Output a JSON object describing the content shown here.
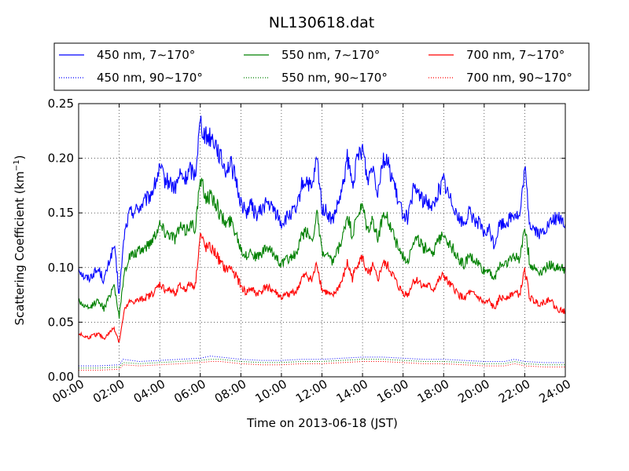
{
  "chart_data": {
    "type": "line",
    "title": "NL130618.dat",
    "xlabel": "Time on 2013-06-18 (JST)",
    "ylabel_main": "Scattering Coefficient (km",
    "ylabel_sup": "−1",
    "ylabel_tail": ")",
    "xlim": [
      0,
      24
    ],
    "ylim": [
      0,
      0.25
    ],
    "x_ticks": [
      0,
      2,
      4,
      6,
      8,
      10,
      12,
      14,
      16,
      18,
      20,
      22,
      24
    ],
    "x_tick_labels": [
      "00:00",
      "02:00",
      "04:00",
      "06:00",
      "08:00",
      "10:00",
      "12:00",
      "14:00",
      "16:00",
      "18:00",
      "20:00",
      "22:00",
      "24:00"
    ],
    "y_ticks": [
      0,
      0.05,
      0.1,
      0.15,
      0.2,
      0.25
    ],
    "y_tick_labels": [
      "0.00",
      "0.05",
      "0.10",
      "0.15",
      "0.20",
      "0.25"
    ],
    "grid": true,
    "legend_position": "top, outside plot, 3 columns",
    "x_unit": "hours since 00:00",
    "series": [
      {
        "name": "450 nm, 7∼170°",
        "color": "#0000ff",
        "style": "solid",
        "x": [
          0,
          0.25,
          0.5,
          0.75,
          1,
          1.25,
          1.5,
          1.75,
          2,
          2.25,
          2.5,
          2.75,
          3,
          3.25,
          3.5,
          3.75,
          4,
          4.25,
          4.5,
          4.75,
          5,
          5.25,
          5.5,
          5.75,
          6,
          6.25,
          6.5,
          6.75,
          7,
          7.25,
          7.5,
          7.75,
          8,
          8.25,
          8.5,
          8.75,
          9,
          9.25,
          9.5,
          9.75,
          10,
          10.25,
          10.5,
          10.75,
          11,
          11.25,
          11.5,
          11.75,
          12,
          12.25,
          12.5,
          12.75,
          13,
          13.25,
          13.5,
          13.75,
          14,
          14.25,
          14.5,
          14.75,
          15,
          15.25,
          15.5,
          15.75,
          16,
          16.25,
          16.5,
          16.75,
          17,
          17.25,
          17.5,
          17.75,
          18,
          18.25,
          18.5,
          18.75,
          19,
          19.25,
          19.5,
          19.75,
          20,
          20.25,
          20.5,
          20.75,
          21,
          21.25,
          21.5,
          21.75,
          22,
          22.25,
          22.5,
          22.75,
          23,
          23.25,
          23.5,
          23.75,
          24
        ],
        "y": [
          0.1,
          0.092,
          0.09,
          0.095,
          0.098,
          0.088,
          0.105,
          0.12,
          0.075,
          0.13,
          0.15,
          0.152,
          0.155,
          0.16,
          0.165,
          0.175,
          0.19,
          0.18,
          0.178,
          0.172,
          0.185,
          0.18,
          0.19,
          0.185,
          0.235,
          0.22,
          0.22,
          0.215,
          0.2,
          0.19,
          0.195,
          0.18,
          0.16,
          0.15,
          0.158,
          0.148,
          0.152,
          0.16,
          0.155,
          0.15,
          0.14,
          0.145,
          0.15,
          0.152,
          0.175,
          0.18,
          0.17,
          0.2,
          0.155,
          0.15,
          0.142,
          0.155,
          0.17,
          0.2,
          0.175,
          0.2,
          0.21,
          0.18,
          0.195,
          0.17,
          0.2,
          0.195,
          0.18,
          0.16,
          0.15,
          0.145,
          0.17,
          0.17,
          0.16,
          0.16,
          0.155,
          0.17,
          0.18,
          0.165,
          0.158,
          0.145,
          0.14,
          0.15,
          0.145,
          0.14,
          0.13,
          0.135,
          0.12,
          0.14,
          0.14,
          0.145,
          0.15,
          0.145,
          0.19,
          0.14,
          0.135,
          0.13,
          0.135,
          0.14,
          0.145,
          0.145,
          0.14
        ]
      },
      {
        "name": "550 nm, 7∼170°",
        "color": "#008000",
        "style": "solid",
        "x": [
          0,
          0.25,
          0.5,
          0.75,
          1,
          1.25,
          1.5,
          1.75,
          2,
          2.25,
          2.5,
          2.75,
          3,
          3.25,
          3.5,
          3.75,
          4,
          4.25,
          4.5,
          4.75,
          5,
          5.25,
          5.5,
          5.75,
          6,
          6.25,
          6.5,
          6.75,
          7,
          7.25,
          7.5,
          7.75,
          8,
          8.25,
          8.5,
          8.75,
          9,
          9.25,
          9.5,
          9.75,
          10,
          10.25,
          10.5,
          10.75,
          11,
          11.25,
          11.5,
          11.75,
          12,
          12.25,
          12.5,
          12.75,
          13,
          13.25,
          13.5,
          13.75,
          14,
          14.25,
          14.5,
          14.75,
          15,
          15.25,
          15.5,
          15.75,
          16,
          16.25,
          16.5,
          16.75,
          17,
          17.25,
          17.5,
          17.75,
          18,
          18.25,
          18.5,
          18.75,
          19,
          19.25,
          19.5,
          19.75,
          20,
          20.25,
          20.5,
          20.75,
          21,
          21.25,
          21.5,
          21.75,
          22,
          22.25,
          22.5,
          22.75,
          23,
          23.25,
          23.5,
          23.75,
          24
        ],
        "y": [
          0.07,
          0.065,
          0.062,
          0.067,
          0.07,
          0.062,
          0.073,
          0.085,
          0.055,
          0.095,
          0.11,
          0.112,
          0.115,
          0.118,
          0.122,
          0.13,
          0.14,
          0.133,
          0.131,
          0.127,
          0.137,
          0.133,
          0.14,
          0.137,
          0.18,
          0.165,
          0.165,
          0.16,
          0.148,
          0.14,
          0.143,
          0.133,
          0.118,
          0.11,
          0.116,
          0.109,
          0.112,
          0.118,
          0.114,
          0.11,
          0.103,
          0.107,
          0.11,
          0.112,
          0.129,
          0.133,
          0.125,
          0.148,
          0.114,
          0.11,
          0.104,
          0.114,
          0.125,
          0.148,
          0.129,
          0.148,
          0.155,
          0.133,
          0.144,
          0.125,
          0.148,
          0.144,
          0.133,
          0.118,
          0.11,
          0.107,
          0.125,
          0.125,
          0.118,
          0.118,
          0.114,
          0.125,
          0.133,
          0.122,
          0.116,
          0.107,
          0.103,
          0.11,
          0.107,
          0.103,
          0.096,
          0.099,
          0.088,
          0.103,
          0.103,
          0.107,
          0.11,
          0.107,
          0.14,
          0.103,
          0.099,
          0.096,
          0.099,
          0.103,
          0.1,
          0.1,
          0.098
        ]
      },
      {
        "name": "700 nm, 7∼170°",
        "color": "#ff0000",
        "style": "solid",
        "x": [
          0,
          0.25,
          0.5,
          0.75,
          1,
          1.25,
          1.5,
          1.75,
          2,
          2.25,
          2.5,
          2.75,
          3,
          3.25,
          3.5,
          3.75,
          4,
          4.25,
          4.5,
          4.75,
          5,
          5.25,
          5.5,
          5.75,
          6,
          6.25,
          6.5,
          6.75,
          7,
          7.25,
          7.5,
          7.75,
          8,
          8.25,
          8.5,
          8.75,
          9,
          9.25,
          9.5,
          9.75,
          10,
          10.25,
          10.5,
          10.75,
          11,
          11.25,
          11.5,
          11.75,
          12,
          12.25,
          12.5,
          12.75,
          13,
          13.25,
          13.5,
          13.75,
          14,
          14.25,
          14.5,
          14.75,
          15,
          15.25,
          15.5,
          15.75,
          16,
          16.25,
          16.5,
          16.75,
          17,
          17.25,
          17.5,
          17.75,
          18,
          18.25,
          18.5,
          18.75,
          19,
          19.25,
          19.5,
          19.75,
          20,
          20.25,
          20.5,
          20.75,
          21,
          21.25,
          21.5,
          21.75,
          22,
          22.25,
          22.5,
          22.75,
          23,
          23.25,
          23.5,
          23.75,
          24
        ],
        "y": [
          0.04,
          0.037,
          0.036,
          0.038,
          0.039,
          0.035,
          0.04,
          0.045,
          0.032,
          0.06,
          0.068,
          0.069,
          0.07,
          0.072,
          0.074,
          0.078,
          0.085,
          0.08,
          0.079,
          0.077,
          0.083,
          0.08,
          0.085,
          0.083,
          0.13,
          0.118,
          0.118,
          0.113,
          0.104,
          0.098,
          0.1,
          0.093,
          0.083,
          0.077,
          0.081,
          0.076,
          0.078,
          0.083,
          0.08,
          0.077,
          0.072,
          0.075,
          0.077,
          0.078,
          0.09,
          0.093,
          0.088,
          0.104,
          0.08,
          0.077,
          0.073,
          0.08,
          0.088,
          0.104,
          0.09,
          0.104,
          0.109,
          0.093,
          0.101,
          0.088,
          0.104,
          0.101,
          0.093,
          0.083,
          0.077,
          0.075,
          0.088,
          0.088,
          0.083,
          0.083,
          0.08,
          0.088,
          0.093,
          0.085,
          0.081,
          0.075,
          0.072,
          0.077,
          0.075,
          0.072,
          0.067,
          0.069,
          0.062,
          0.072,
          0.072,
          0.075,
          0.077,
          0.075,
          0.098,
          0.072,
          0.069,
          0.067,
          0.069,
          0.072,
          0.063,
          0.061,
          0.06
        ]
      },
      {
        "name": "450 nm, 90∼170°",
        "color": "#0000ff",
        "style": "dotted",
        "x": [
          0,
          1,
          2,
          2.2,
          3,
          4,
          5,
          6,
          6.5,
          7,
          8,
          9,
          10,
          11,
          12,
          13,
          14,
          15,
          16,
          17,
          18,
          19,
          20,
          21,
          21.5,
          22,
          23,
          24
        ],
        "y": [
          0.01,
          0.01,
          0.011,
          0.016,
          0.014,
          0.015,
          0.016,
          0.017,
          0.019,
          0.018,
          0.016,
          0.015,
          0.015,
          0.016,
          0.016,
          0.017,
          0.018,
          0.018,
          0.017,
          0.016,
          0.016,
          0.015,
          0.014,
          0.014,
          0.016,
          0.014,
          0.013,
          0.013
        ]
      },
      {
        "name": "550 nm, 90∼170°",
        "color": "#008000",
        "style": "dotted",
        "x": [
          0,
          1,
          2,
          2.2,
          3,
          4,
          5,
          6,
          6.5,
          7,
          8,
          9,
          10,
          11,
          12,
          13,
          14,
          15,
          16,
          17,
          18,
          19,
          20,
          21,
          21.5,
          22,
          23,
          24
        ],
        "y": [
          0.008,
          0.008,
          0.009,
          0.013,
          0.012,
          0.013,
          0.014,
          0.015,
          0.016,
          0.016,
          0.014,
          0.013,
          0.013,
          0.014,
          0.014,
          0.015,
          0.016,
          0.016,
          0.015,
          0.014,
          0.014,
          0.013,
          0.012,
          0.012,
          0.014,
          0.012,
          0.011,
          0.011
        ]
      },
      {
        "name": "700 nm, 90∼170°",
        "color": "#ff0000",
        "style": "dotted",
        "x": [
          0,
          1,
          2,
          2.2,
          3,
          4,
          5,
          6,
          6.5,
          7,
          8,
          9,
          10,
          11,
          12,
          13,
          14,
          15,
          16,
          17,
          18,
          19,
          20,
          21,
          21.5,
          22,
          23,
          24
        ],
        "y": [
          0.006,
          0.006,
          0.007,
          0.011,
          0.01,
          0.011,
          0.012,
          0.013,
          0.014,
          0.014,
          0.012,
          0.011,
          0.011,
          0.012,
          0.012,
          0.013,
          0.014,
          0.014,
          0.013,
          0.012,
          0.012,
          0.011,
          0.01,
          0.01,
          0.012,
          0.01,
          0.009,
          0.009
        ]
      }
    ]
  }
}
